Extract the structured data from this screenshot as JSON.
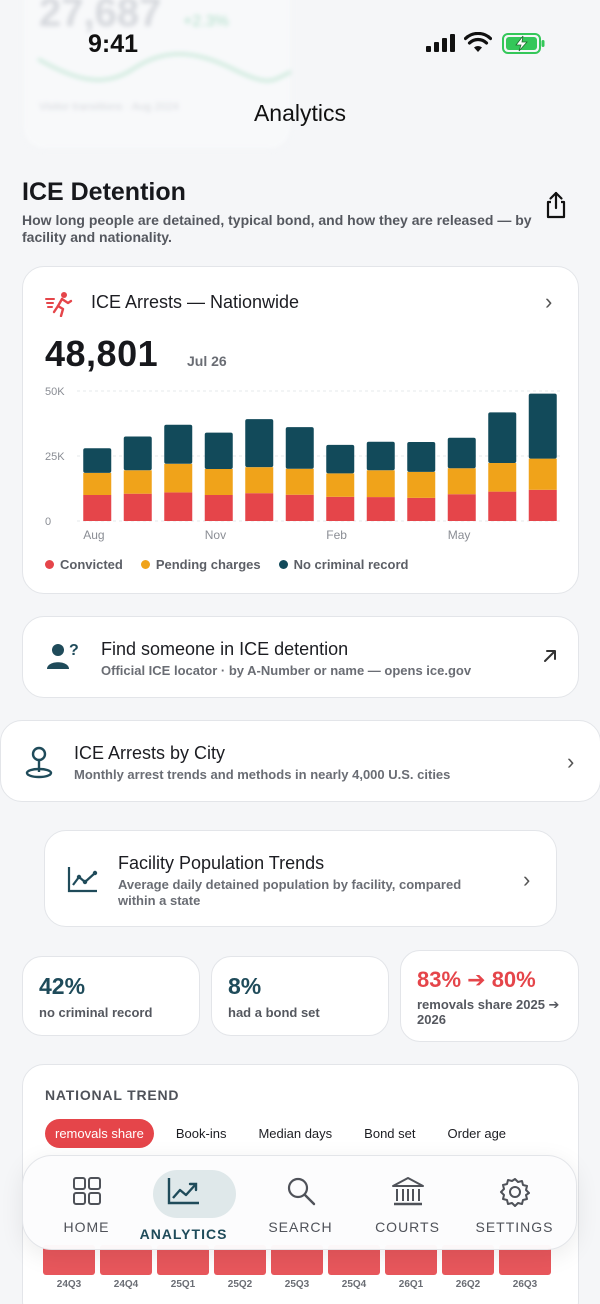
{
  "ghost": {
    "value": "27,687",
    "change": "+2.3%",
    "caption": "Visitor transitions · Aug 2024"
  },
  "status": {
    "time": "9:41"
  },
  "nav": {
    "title": "Analytics"
  },
  "page": {
    "title": "ICE Detention",
    "subtitle": "How long people are detained, typical bond, and how they are released — by facility and nationality.",
    "share_icon": "share-icon"
  },
  "arrests_card": {
    "title": "ICE Arrests — Nationwide",
    "value": "48,801",
    "date": "Jul 26",
    "icon": "running-person-icon"
  },
  "colors": {
    "convicted": "#e5454a",
    "pending": "#f0a31a",
    "no_record": "#124a5a",
    "accent": "#1f4b5a"
  },
  "chart_data": {
    "type": "bar",
    "stacked": true,
    "categories": [
      "Aug",
      "Sep",
      "Oct",
      "Nov",
      "Dec",
      "Jan",
      "Feb",
      "Mar",
      "Apr",
      "May",
      "Jun",
      "Jul"
    ],
    "x_tick_labels": [
      "Aug",
      "Nov",
      "Feb",
      "May"
    ],
    "y_ticks": [
      "50K",
      "25K",
      "0"
    ],
    "ylim": [
      0,
      50000
    ],
    "grid": true,
    "legend_position": "bottom",
    "series": [
      {
        "name": "Convicted",
        "values": [
          10000,
          10500,
          11000,
          10000,
          10700,
          10100,
          9300,
          9200,
          8900,
          10300,
          11300,
          12000
        ]
      },
      {
        "name": "Pending charges",
        "values": [
          8500,
          9000,
          11000,
          10000,
          10000,
          10000,
          9000,
          10300,
          10000,
          10000,
          11000,
          12000
        ]
      },
      {
        "name": "No criminal record",
        "values": [
          9500,
          13000,
          15000,
          14000,
          18500,
          16000,
          11000,
          11000,
          11500,
          11700,
          19500,
          25000
        ]
      }
    ]
  },
  "find_card": {
    "title": "Find someone in ICE detention",
    "subtitle": "Official ICE locator · by A-Number or name — opens ice.gov",
    "icon": "person-question-icon"
  },
  "city_card": {
    "title": "ICE Arrests by City",
    "subtitle": "Monthly arrest trends and methods in nearly 4,000 U.S. cities",
    "icon": "location-pin-icon"
  },
  "facility_card": {
    "title": "Facility Population Trends",
    "subtitle": "Average daily detained population by facility, compared within a state",
    "icon": "line-chart-icon"
  },
  "stats": [
    {
      "value": "42%",
      "label": "no criminal record"
    },
    {
      "value": "8%",
      "label": "had a bond set"
    },
    {
      "value": "83% ➔ 80%",
      "label": "removals share 2025 ➔ 2026"
    }
  ],
  "trend": {
    "header": "NATIONAL TREND",
    "chips": [
      "removals share",
      "Book-ins",
      "Median days",
      "Bond set",
      "Order age"
    ],
    "active_chip": "removals share",
    "quarters": [
      "24Q3",
      "24Q4",
      "25Q1",
      "25Q2",
      "25Q3",
      "25Q4",
      "26Q1",
      "26Q2",
      "26Q3"
    ]
  },
  "tabs": [
    {
      "label": "HOME",
      "icon": "grid-icon"
    },
    {
      "label": "ANALYTICS",
      "icon": "trend-chart-icon"
    },
    {
      "label": "SEARCH",
      "icon": "search-icon"
    },
    {
      "label": "COURTS",
      "icon": "courthouse-icon"
    },
    {
      "label": "SETTINGS",
      "icon": "gear-icon"
    }
  ]
}
